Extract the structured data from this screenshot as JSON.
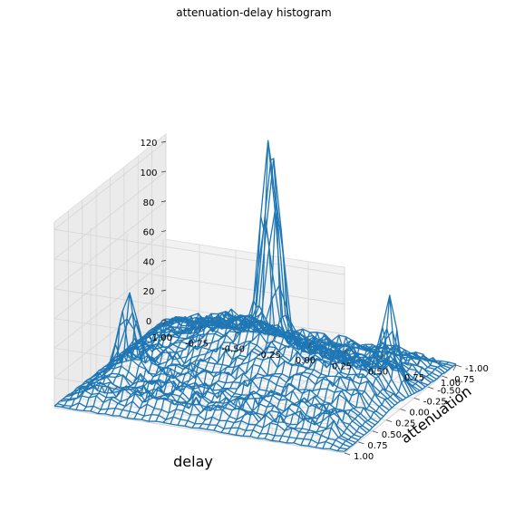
{
  "chart_data": {
    "type": "surface-wireframe-3d",
    "title": "attenuation-delay histogram",
    "xlabel": "delay",
    "ylabel": "attenuation",
    "zlabel": "",
    "xlim": [
      -1.0,
      1.0
    ],
    "ylim": [
      -1.0,
      1.0
    ],
    "zlim": [
      0,
      125
    ],
    "xticks": [
      "-1.00",
      "-0.75",
      "-0.50",
      "-0.25",
      "0.00",
      "0.25",
      "0.50",
      "0.75",
      "1.00"
    ],
    "yticks": [
      "-1.00",
      "-0.75",
      "-0.50",
      "-0.25",
      "0.00",
      "0.25",
      "0.50",
      "0.75",
      "1.00"
    ],
    "zticks": [
      "0",
      "20",
      "40",
      "60",
      "80",
      "100",
      "120"
    ],
    "grid": true,
    "line_color": "#1f77b4",
    "peaks": [
      {
        "delay": 0.05,
        "attenuation": -0.1,
        "height": 122,
        "width": 0.05
      },
      {
        "delay": 0.05,
        "attenuation": -0.22,
        "height": 108,
        "width": 0.05
      },
      {
        "delay": -0.75,
        "attenuation": 0.3,
        "height": 50,
        "width": 0.06
      },
      {
        "delay": 0.85,
        "attenuation": -0.2,
        "height": 55,
        "width": 0.05
      },
      {
        "delay": -0.3,
        "attenuation": -0.3,
        "height": 22,
        "width": 0.22
      },
      {
        "delay": 0.1,
        "attenuation": 0.0,
        "height": 20,
        "width": 0.25
      },
      {
        "delay": 0.6,
        "attenuation": 0.1,
        "height": 16,
        "width": 0.25
      }
    ],
    "base_level": 6,
    "noise_amplitude": 9
  }
}
